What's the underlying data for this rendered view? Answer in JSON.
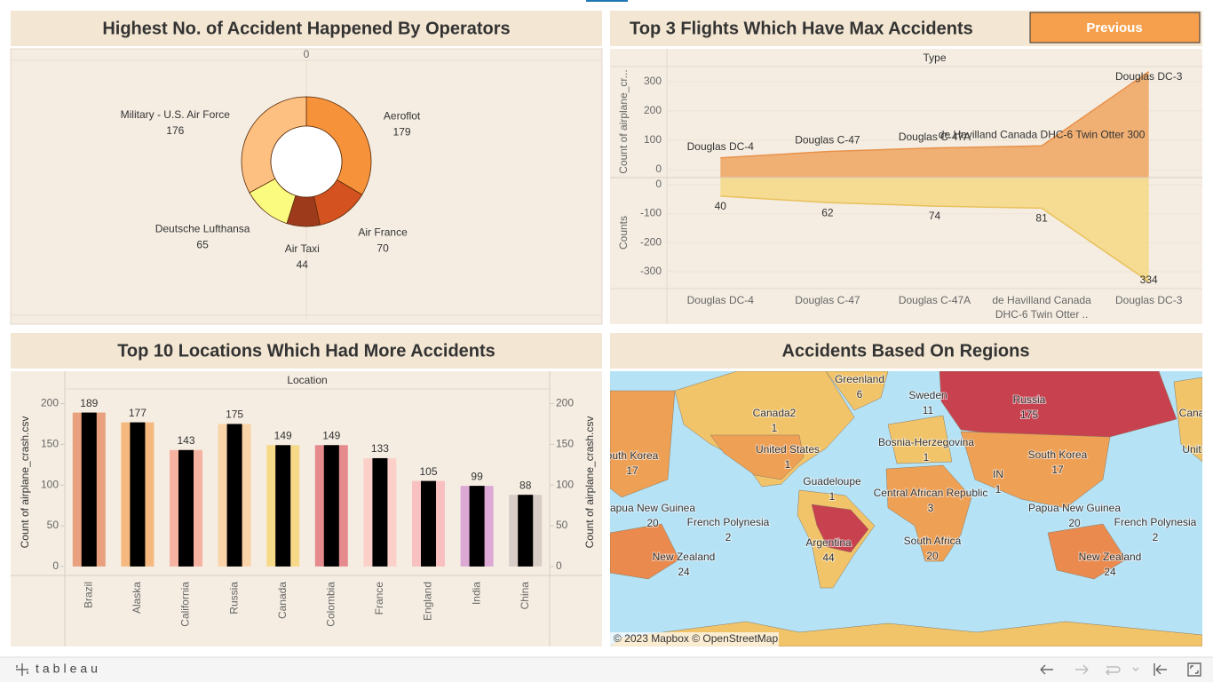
{
  "chart_data": [
    {
      "type": "pie",
      "title": "Highest No. of Accident Happened By Operators",
      "donut": true,
      "categories": [
        "Aeroflot",
        "Air France",
        "Air Taxi",
        "Deutsche Lufthansa",
        "Military - U.S. Air Force"
      ],
      "values": [
        179,
        70,
        44,
        65,
        176
      ],
      "colors": [
        "#f5923a",
        "#d4521f",
        "#9e3a1c",
        "#fbfb80",
        "#fdc081"
      ],
      "xlim": [
        -1,
        1
      ],
      "xticks": [
        0
      ]
    },
    {
      "type": "area",
      "title": "Top 3 Flights Which Have Max Accidents",
      "header": "Type",
      "y_label": "Count of airplane_cr...",
      "y2_label": "Counts",
      "categories": [
        "Douglas DC-4",
        "Douglas C-47",
        "Douglas C-47A",
        "de Havilland Canada DHC-6 Twin Otter ..",
        "Douglas DC-3"
      ],
      "series": [
        {
          "color": "#f0a868",
          "values": [
            40,
            62,
            74,
            81,
            334
          ],
          "mark_labels": [
            "Douglas DC-4",
            "Douglas C-47",
            "Douglas C-47A",
            "de Havilland Canada DHC-6 Twin Otter 300",
            "Douglas DC-3"
          ]
        },
        {
          "color": "#f5d98a",
          "axis": "y2",
          "values": [
            -40,
            -62,
            -74,
            -81,
            -334
          ],
          "value_labels": [
            "40",
            "62",
            "74",
            "81",
            "334"
          ]
        }
      ],
      "ylim": [
        -27,
        351
      ],
      "yticks": [
        0,
        100,
        200,
        300
      ],
      "y2lim": [
        -358,
        24
      ],
      "y2ticks": [
        0,
        -100,
        -200,
        -300
      ],
      "grid": true
    },
    {
      "type": "bar",
      "title": "Top 10 Locations Which Had More Accidents",
      "header": "Location",
      "y_label": "Count of airplane_crash.csv",
      "y2_label": "Count of airplane_crash.csv",
      "categories": [
        "Brazil",
        "Alaska",
        "California",
        "Russia",
        "Canada",
        "Colombia",
        "France",
        "England",
        "India",
        "China"
      ],
      "series": [
        {
          "colors": [
            "#e8a07f",
            "#f5b97f",
            "#f6b2a0",
            "#fbd3a8",
            "#f7d98a",
            "#e58b8e",
            "#fbd0c8",
            "#f8c0c0",
            "#dba9d4",
            "#d8ccc6"
          ],
          "values": [
            189,
            177,
            143,
            175,
            149,
            149,
            133,
            105,
            99,
            88
          ]
        },
        {
          "color": "#000000",
          "axis": "y2",
          "values": [
            189,
            177,
            143,
            175,
            149,
            149,
            133,
            105,
            99,
            88
          ]
        }
      ],
      "ylim": [
        -11,
        218
      ],
      "yticks": [
        0,
        50,
        100,
        150,
        200
      ],
      "y2lim": [
        -11,
        218
      ],
      "y2ticks": [
        0,
        50,
        100,
        150,
        200
      ]
    }
  ],
  "dashboard": {
    "button": "Previous",
    "footer_logo": "tableau",
    "map": {
      "title": "Accidents Based On Regions",
      "attribution": "© 2023 Mapbox © OpenStreetMap",
      "regions": [
        {
          "name": "Greenland",
          "value": 6
        },
        {
          "name": "Sweden",
          "value": 11
        },
        {
          "name": "Canada2",
          "value": 1
        },
        {
          "name": "Russia",
          "value": 175
        },
        {
          "name": "Cana"
        },
        {
          "name": "United States",
          "value": 1
        },
        {
          "name": "Unit"
        },
        {
          "name": "Bosnia-Herzegovina",
          "value": 1
        },
        {
          "name": "outh Korea",
          "value": 17
        },
        {
          "name": "South Korea",
          "value": 17
        },
        {
          "name": "Guadeloupe",
          "value": 1
        },
        {
          "name": "Central African Republic",
          "value": 3
        },
        {
          "name": "IN",
          "value": 1
        },
        {
          "name": "apua New Guinea",
          "value": 20
        },
        {
          "name": "Papua New Guinea",
          "value": 20
        },
        {
          "name": "French Polynesia",
          "value": 2
        },
        {
          "name": "French Polynesia",
          "value": 2
        },
        {
          "name": "Argentina",
          "value": 44
        },
        {
          "name": "South Africa",
          "value": 20
        },
        {
          "name": "New Zealand",
          "value": 24
        },
        {
          "name": "New Zealand",
          "value": 24
        }
      ]
    }
  }
}
